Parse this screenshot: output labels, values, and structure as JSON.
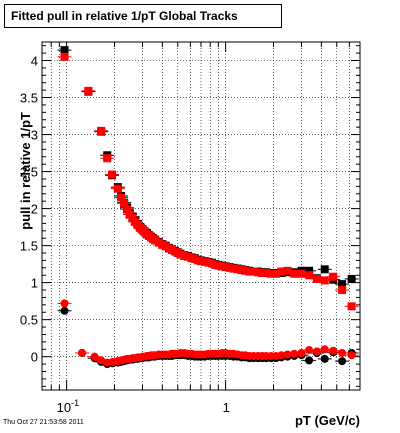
{
  "chart_data": {
    "type": "scatter",
    "title": "Fitted pull in relative 1/pT  Global Tracks",
    "xlabel": "pT (GeV/c)",
    "ylabel": "pull in relative 1/pT",
    "xscale": "log",
    "xlim": [
      0.07,
      7.0
    ],
    "ylim": [
      -0.45,
      4.25
    ],
    "grid": true,
    "x_tick_labels": [
      {
        "base": "10",
        "exp": "-1",
        "value": 0.1
      },
      {
        "base": "1",
        "exp": "",
        "value": 1
      }
    ],
    "y_ticks": [
      0,
      0.5,
      1,
      1.5,
      2,
      2.5,
      3,
      3.5,
      4
    ],
    "timestamp": "Thu Oct 27 21:53:58 2011",
    "series": [
      {
        "color": "#000000",
        "marker": "square",
        "x": [
          0.097,
          0.137,
          0.165,
          0.18,
          0.193,
          0.21,
          0.22,
          0.23,
          0.24,
          0.25,
          0.26,
          0.27,
          0.28,
          0.29,
          0.3,
          0.31,
          0.32,
          0.33,
          0.34,
          0.35,
          0.36,
          0.38,
          0.4,
          0.42,
          0.44,
          0.46,
          0.48,
          0.5,
          0.52,
          0.55,
          0.58,
          0.61,
          0.64,
          0.67,
          0.7,
          0.74,
          0.78,
          0.82,
          0.86,
          0.9,
          0.95,
          1.0,
          1.06,
          1.12,
          1.19,
          1.26,
          1.33,
          1.41,
          1.5,
          1.6,
          1.7,
          1.8,
          1.93,
          2.07,
          2.24,
          2.45,
          2.7,
          3.0,
          3.35,
          3.75,
          4.2,
          4.75,
          5.4,
          6.2
        ],
        "y": [
          4.14,
          3.58,
          3.04,
          2.72,
          2.45,
          2.29,
          2.17,
          2.08,
          2.01,
          1.94,
          1.89,
          1.84,
          1.79,
          1.75,
          1.72,
          1.69,
          1.67,
          1.64,
          1.62,
          1.6,
          1.58,
          1.55,
          1.52,
          1.5,
          1.47,
          1.45,
          1.43,
          1.41,
          1.39,
          1.37,
          1.36,
          1.34,
          1.33,
          1.31,
          1.3,
          1.29,
          1.28,
          1.27,
          1.25,
          1.24,
          1.23,
          1.22,
          1.21,
          1.2,
          1.19,
          1.18,
          1.17,
          1.16,
          1.15,
          1.15,
          1.14,
          1.14,
          1.13,
          1.13,
          1.13,
          1.14,
          1.14,
          1.16,
          1.16,
          1.06,
          1.18,
          1.04,
          0.98,
          1.05
        ]
      },
      {
        "color": "#ff0000",
        "marker": "square",
        "x": [
          0.097,
          0.137,
          0.165,
          0.18,
          0.193,
          0.21,
          0.22,
          0.23,
          0.24,
          0.25,
          0.26,
          0.27,
          0.28,
          0.29,
          0.3,
          0.31,
          0.32,
          0.33,
          0.34,
          0.35,
          0.36,
          0.38,
          0.4,
          0.42,
          0.44,
          0.46,
          0.48,
          0.5,
          0.52,
          0.55,
          0.58,
          0.61,
          0.64,
          0.67,
          0.7,
          0.74,
          0.78,
          0.82,
          0.86,
          0.9,
          0.95,
          1.0,
          1.06,
          1.12,
          1.19,
          1.26,
          1.33,
          1.41,
          1.5,
          1.6,
          1.7,
          1.8,
          1.93,
          2.07,
          2.24,
          2.45,
          2.7,
          3.0,
          3.35,
          3.75,
          4.2,
          4.75,
          5.4,
          6.2
        ],
        "y": [
          4.05,
          3.59,
          3.05,
          2.68,
          2.46,
          2.27,
          2.15,
          2.07,
          1.99,
          1.92,
          1.87,
          1.82,
          1.78,
          1.74,
          1.71,
          1.68,
          1.65,
          1.63,
          1.61,
          1.59,
          1.57,
          1.54,
          1.51,
          1.49,
          1.46,
          1.44,
          1.42,
          1.4,
          1.38,
          1.36,
          1.35,
          1.33,
          1.32,
          1.3,
          1.29,
          1.28,
          1.27,
          1.26,
          1.24,
          1.23,
          1.22,
          1.21,
          1.2,
          1.19,
          1.18,
          1.17,
          1.16,
          1.15,
          1.15,
          1.14,
          1.13,
          1.13,
          1.12,
          1.12,
          1.15,
          1.16,
          1.12,
          1.12,
          1.1,
          1.05,
          1.03,
          1.08,
          0.9,
          0.68
        ]
      },
      {
        "color": "#000000",
        "marker": "circle",
        "x": [
          0.097,
          0.125,
          0.15,
          0.165,
          0.18,
          0.195,
          0.21,
          0.22,
          0.23,
          0.24,
          0.25,
          0.26,
          0.27,
          0.28,
          0.29,
          0.3,
          0.31,
          0.32,
          0.33,
          0.34,
          0.35,
          0.36,
          0.38,
          0.4,
          0.42,
          0.44,
          0.46,
          0.48,
          0.5,
          0.52,
          0.55,
          0.58,
          0.61,
          0.64,
          0.67,
          0.7,
          0.74,
          0.78,
          0.82,
          0.86,
          0.9,
          0.95,
          1.0,
          1.06,
          1.12,
          1.19,
          1.26,
          1.33,
          1.41,
          1.5,
          1.6,
          1.7,
          1.8,
          1.93,
          2.07,
          2.24,
          2.45,
          2.7,
          3.0,
          3.35,
          3.75,
          4.2,
          4.75,
          5.4,
          6.2
        ],
        "y": [
          0.62,
          0.05,
          -0.02,
          -0.07,
          -0.1,
          -0.09,
          -0.08,
          -0.07,
          -0.06,
          -0.05,
          -0.04,
          -0.04,
          -0.03,
          -0.03,
          -0.02,
          -0.02,
          -0.01,
          -0.01,
          -0.01,
          0.0,
          0.0,
          0.0,
          0.01,
          0.01,
          0.01,
          0.01,
          0.01,
          0.02,
          0.02,
          0.02,
          0.02,
          0.01,
          0.01,
          0.0,
          0.0,
          0.0,
          0.0,
          0.01,
          0.01,
          0.01,
          0.01,
          0.01,
          0.01,
          0.01,
          0.0,
          0.0,
          -0.01,
          -0.01,
          -0.02,
          -0.02,
          -0.02,
          -0.02,
          -0.02,
          -0.02,
          -0.02,
          -0.01,
          0.0,
          0.01,
          0.02,
          -0.05,
          0.05,
          -0.03,
          0.06,
          -0.06,
          0.05
        ]
      },
      {
        "color": "#ff0000",
        "marker": "circle",
        "x": [
          0.097,
          0.125,
          0.15,
          0.165,
          0.18,
          0.195,
          0.21,
          0.22,
          0.23,
          0.24,
          0.25,
          0.26,
          0.27,
          0.28,
          0.29,
          0.3,
          0.31,
          0.32,
          0.33,
          0.34,
          0.35,
          0.36,
          0.38,
          0.4,
          0.42,
          0.44,
          0.46,
          0.48,
          0.5,
          0.52,
          0.55,
          0.58,
          0.61,
          0.64,
          0.67,
          0.7,
          0.74,
          0.78,
          0.82,
          0.86,
          0.9,
          0.95,
          1.0,
          1.06,
          1.12,
          1.19,
          1.26,
          1.33,
          1.41,
          1.5,
          1.6,
          1.7,
          1.8,
          1.93,
          2.07,
          2.24,
          2.45,
          2.7,
          3.0,
          3.35,
          3.75,
          4.2,
          4.75,
          5.4,
          6.2
        ],
        "y": [
          0.72,
          0.05,
          0.0,
          -0.05,
          -0.08,
          -0.07,
          -0.06,
          -0.05,
          -0.04,
          -0.03,
          -0.03,
          -0.02,
          -0.02,
          -0.01,
          -0.01,
          0.0,
          0.0,
          0.01,
          0.01,
          0.02,
          0.02,
          0.02,
          0.03,
          0.03,
          0.03,
          0.03,
          0.04,
          0.04,
          0.04,
          0.05,
          0.05,
          0.04,
          0.04,
          0.03,
          0.03,
          0.03,
          0.03,
          0.04,
          0.04,
          0.04,
          0.04,
          0.05,
          0.05,
          0.04,
          0.04,
          0.03,
          0.02,
          0.02,
          0.01,
          0.01,
          0.01,
          0.01,
          0.01,
          0.01,
          0.01,
          0.02,
          0.03,
          0.04,
          0.05,
          0.09,
          0.07,
          0.1,
          0.08,
          0.05,
          0.02
        ]
      }
    ]
  }
}
